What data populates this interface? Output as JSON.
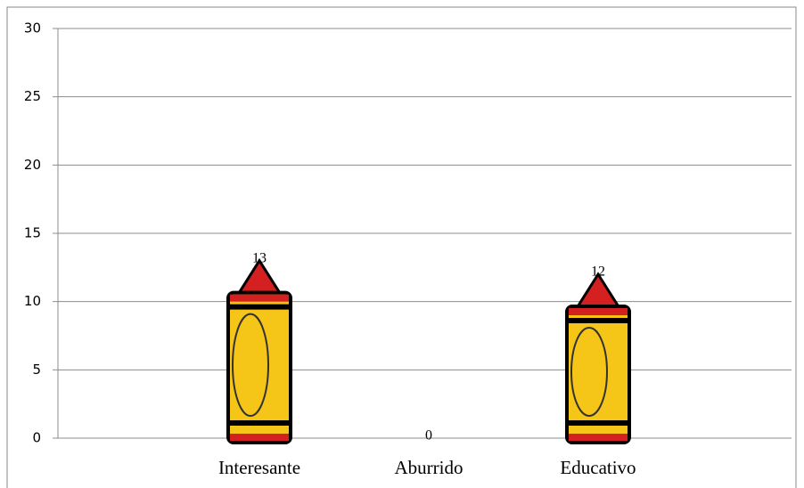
{
  "chart_data": {
    "type": "bar",
    "categories": [
      "Interesante",
      "Aburrido",
      "Educativo"
    ],
    "values": [
      13,
      0,
      12
    ],
    "color": "#f5c518",
    "ylim": [
      0,
      30
    ],
    "yticks": [
      0,
      5,
      10,
      15,
      20,
      25,
      30
    ],
    "grid": true
  }
}
